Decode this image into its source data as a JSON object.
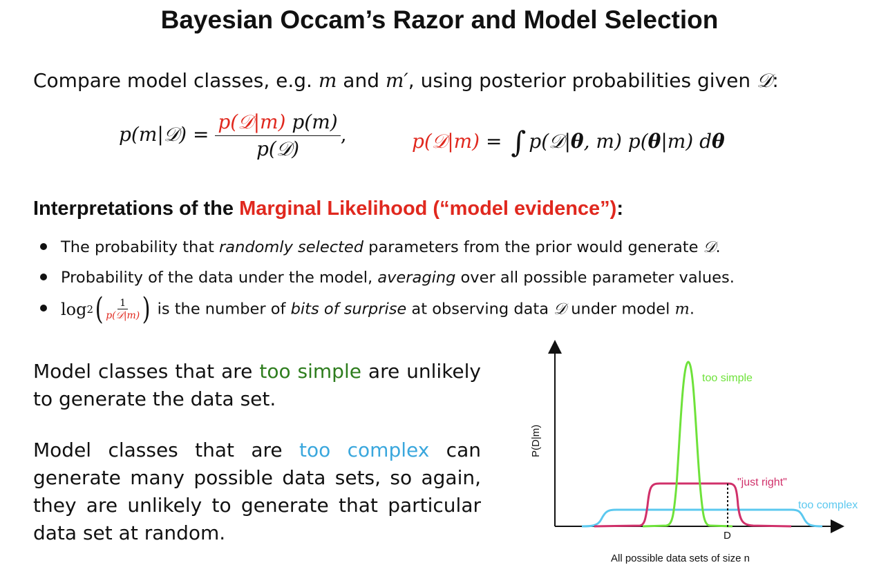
{
  "title": "Bayesian Occam’s Razor and Model Selection",
  "intro": {
    "text_a": "Compare model classes, e.g. ",
    "m": "m",
    "and": " and ",
    "m_prime": "m′",
    "text_b": ", using posterior probabilities given ",
    "D": "𝒟",
    "colon": ":"
  },
  "equation_posterior": {
    "lhs": "p(m|𝒟) =",
    "numerator_red": "p(𝒟|m)",
    "numerator_rest": " p(m)",
    "denominator": "p(𝒟)",
    "comma": ","
  },
  "equation_evidence": {
    "lhs_red": "p(𝒟|m)",
    "equals": " = ",
    "integral": "∫",
    "rhs_a": "p(𝒟|",
    "theta": "θ",
    "rhs_b": ", m) p(",
    "rhs_c": "|m) d"
  },
  "heading": {
    "prefix": "Interpretations of the ",
    "red": "Marginal Likelihood (“model evidence”)",
    "suffix": ":"
  },
  "bullets": {
    "b1": {
      "a": "The probability that ",
      "i": "randomly selected",
      "b": " parameters from the prior would generate ",
      "D": "𝒟",
      "end": "."
    },
    "b2": {
      "a": "Probability of the data under the model, ",
      "i": "averaging",
      "b": " over all possible parameter values."
    },
    "b3": {
      "log": "log",
      "sub": "2",
      "frac_num": "1",
      "frac_den": "p(𝒟|m)",
      "a": " is the number of ",
      "i": "bits of surprise",
      "b": " at observing data ",
      "D": "𝒟",
      "c": " under model ",
      "m": "m",
      "end": "."
    }
  },
  "para_simple": {
    "a": "Model classes that are ",
    "colored": "too simple",
    "b": " are unlikely to generate the data set."
  },
  "para_complex": {
    "a": "Model classes that are ",
    "colored": "too complex",
    "b": " can generate many possible data sets, so again, they are unlikely to generate that particular data set at random."
  },
  "colors": {
    "red": "#e0281e",
    "green": "#2e7d1e",
    "blue": "#3aa7dd",
    "curve_simple": "#6ee23a",
    "curve_right": "#d0306a",
    "curve_complex": "#5bc8ef"
  },
  "chart_data": {
    "type": "line",
    "ylabel": "P(D|m)",
    "xlabel": "All possible data sets of size n",
    "x_marker": "D",
    "series": [
      {
        "name": "too simple",
        "color": "#6ee23a"
      },
      {
        "name": "\"just right\"",
        "color": "#d0306a"
      },
      {
        "name": "too complex",
        "color": "#5bc8ef"
      }
    ]
  }
}
